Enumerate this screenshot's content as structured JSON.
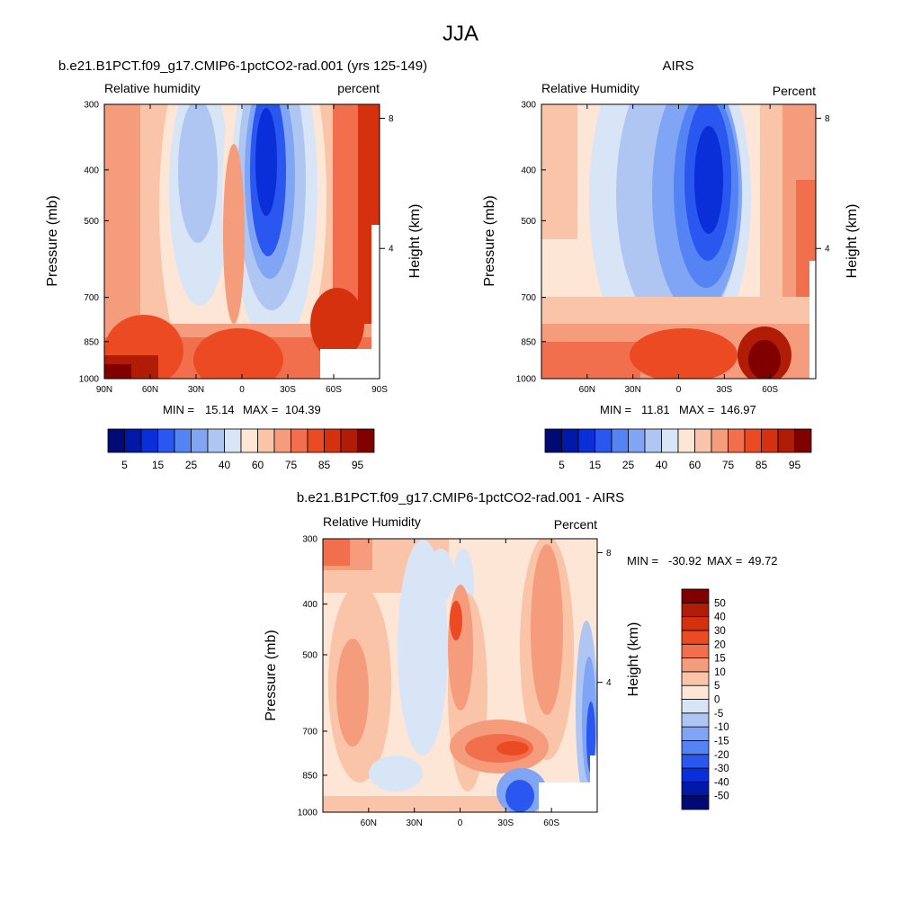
{
  "figure_title": "JJA",
  "chart_data": [
    {
      "type": "heatmap",
      "title": "b.e21.B1PCT.f09_g17.CMIP6-1pctCO2-rad.001 (yrs 125-149)",
      "subtitle_left": "Relative humidity",
      "subtitle_right": "percent",
      "xlabel": "",
      "ylabel": "Pressure (mb)",
      "y2label": "Height (km)",
      "x_ticks": [
        "90N",
        "60N",
        "30N",
        "0",
        "30S",
        "60S",
        "90S"
      ],
      "x_tick_values": [
        90,
        60,
        30,
        0,
        -30,
        -60,
        -90
      ],
      "xlim": [
        90,
        -90
      ],
      "y_ticks": [
        "300",
        "400",
        "500",
        "700",
        "850",
        "1000"
      ],
      "y_tick_values": [
        300,
        400,
        500,
        700,
        850,
        1000
      ],
      "ylim": [
        1000,
        300
      ],
      "y_scale": "log",
      "y2_ticks": [
        "8",
        "4"
      ],
      "y2_tick_values": [
        8,
        4
      ],
      "min_label": "MIN =",
      "min_value": "15.14",
      "max_label": "MAX =",
      "max_value": "104.39",
      "levels": [
        5,
        10,
        15,
        20,
        25,
        30,
        40,
        50,
        60,
        65,
        75,
        80,
        85,
        90,
        95
      ],
      "level_labels": [
        "5",
        "15",
        "25",
        "40",
        "60",
        "75",
        "85",
        "95"
      ],
      "colors": [
        "#000A74",
        "#0018A8",
        "#0A2FD8",
        "#2A57F0",
        "#5484F4",
        "#7FA5F4",
        "#AFC6F2",
        "#D8E5F7",
        "#FDE6D6",
        "#F9C4A7",
        "#F59C7C",
        "#F26F4E",
        "#EC4A22",
        "#D6310E",
        "#B01C05",
        "#800000"
      ],
      "grid": false,
      "legend": "bottom"
    },
    {
      "type": "heatmap",
      "title": "AIRS",
      "subtitle_left": "Relative Humidity",
      "subtitle_right": "Percent",
      "xlabel": "",
      "ylabel": "Pressure (mb)",
      "y2label": "Height (km)",
      "x_ticks": [
        "60N",
        "30N",
        "0",
        "30S",
        "60S"
      ],
      "x_tick_values": [
        60,
        30,
        0,
        -30,
        -60
      ],
      "xlim": [
        90,
        -90
      ],
      "y_ticks": [
        "300",
        "400",
        "500",
        "700",
        "850",
        "1000"
      ],
      "y_tick_values": [
        300,
        400,
        500,
        700,
        850,
        1000
      ],
      "ylim": [
        1000,
        300
      ],
      "y_scale": "log",
      "y2_ticks": [
        "8",
        "4"
      ],
      "y2_tick_values": [
        8,
        4
      ],
      "min_label": "MIN =",
      "min_value": "11.81",
      "max_label": "MAX =",
      "max_value": "146.97",
      "levels": [
        5,
        10,
        15,
        20,
        25,
        30,
        40,
        50,
        60,
        65,
        75,
        80,
        85,
        90,
        95
      ],
      "level_labels": [
        "5",
        "15",
        "25",
        "40",
        "60",
        "75",
        "85",
        "95"
      ],
      "colors": [
        "#000A74",
        "#0018A8",
        "#0A2FD8",
        "#2A57F0",
        "#5484F4",
        "#7FA5F4",
        "#AFC6F2",
        "#D8E5F7",
        "#FDE6D6",
        "#F9C4A7",
        "#F59C7C",
        "#F26F4E",
        "#EC4A22",
        "#D6310E",
        "#B01C05",
        "#800000"
      ],
      "grid": false,
      "legend": "bottom"
    },
    {
      "type": "heatmap",
      "title": "b.e21.B1PCT.f09_g17.CMIP6-1pctCO2-rad.001 - AIRS",
      "subtitle_left": "Relative Humidity",
      "subtitle_right": "Percent",
      "xlabel": "",
      "ylabel": "Pressure (mb)",
      "y2label": "Height (km)",
      "x_ticks": [
        "60N",
        "30N",
        "0",
        "30S",
        "60S"
      ],
      "x_tick_values": [
        60,
        30,
        0,
        -30,
        -60
      ],
      "xlim": [
        90,
        -90
      ],
      "y_ticks": [
        "300",
        "400",
        "500",
        "700",
        "850",
        "1000"
      ],
      "y_tick_values": [
        300,
        400,
        500,
        700,
        850,
        1000
      ],
      "ylim": [
        1000,
        300
      ],
      "y_scale": "log",
      "y2_ticks": [
        "8",
        "4"
      ],
      "y2_tick_values": [
        8,
        4
      ],
      "min_label": "MIN =",
      "min_value": "-30.92",
      "max_label": "MAX =",
      "max_value": "49.72",
      "levels": [
        -50,
        -40,
        -30,
        -20,
        -15,
        -10,
        -5,
        0,
        5,
        10,
        15,
        20,
        30,
        40,
        50
      ],
      "level_labels": [
        "-50",
        "-40",
        "-30",
        "-20",
        "-15",
        "-10",
        "-5",
        "0",
        "5",
        "10",
        "15",
        "20",
        "30",
        "40",
        "50"
      ],
      "colors": [
        "#000A74",
        "#0018A8",
        "#0A2FD8",
        "#2A57F0",
        "#5484F4",
        "#7FA5F4",
        "#AFC6F2",
        "#D8E5F7",
        "#FDE6D6",
        "#F9C4A7",
        "#F59C7C",
        "#F26F4E",
        "#EC4A22",
        "#D6310E",
        "#B01C05",
        "#800000"
      ],
      "grid": false,
      "legend": "right"
    }
  ]
}
